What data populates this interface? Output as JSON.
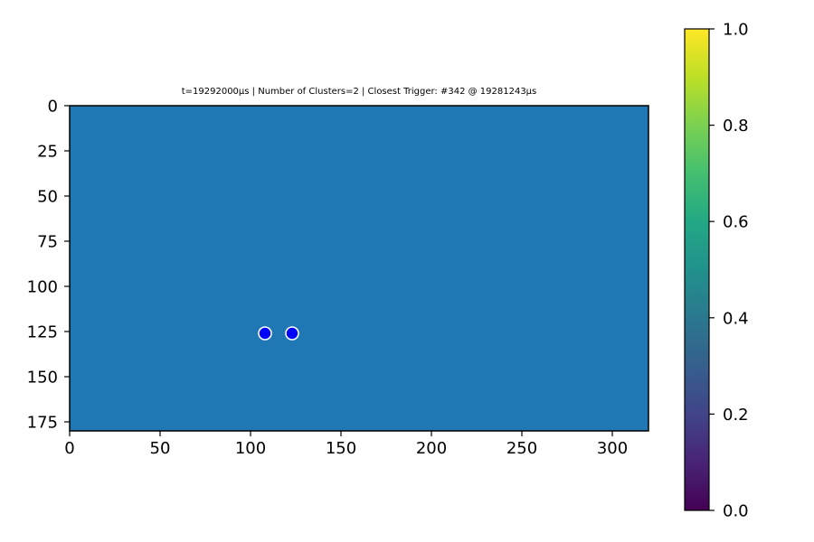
{
  "chart_data": {
    "type": "scatter",
    "title": "t=19292000µs | Number of Clusters=2 | Closest Trigger: #342 @ 19281243µs",
    "xlabel": "",
    "ylabel": "",
    "xlim": [
      0,
      320
    ],
    "ylim": [
      180,
      0
    ],
    "y_axis_inverted": true,
    "x_ticks": [
      "0",
      "50",
      "100",
      "150",
      "200",
      "250",
      "300"
    ],
    "y_ticks": [
      "0",
      "25",
      "50",
      "75",
      "100",
      "125",
      "150",
      "175"
    ],
    "grid": false,
    "background_image": {
      "type": "heatmap",
      "width": 320,
      "height": 180,
      "uniform_color": "#1f77b4"
    },
    "points": [
      {
        "x": 108,
        "y": 126
      },
      {
        "x": 123,
        "y": 126
      }
    ],
    "point_color": "#0000ff",
    "point_edge_color": "#ffffff",
    "colorbar": {
      "colormap": "viridis",
      "min": 0.0,
      "max": 1.0,
      "ticks": [
        "0.0",
        "0.2",
        "0.4",
        "0.6",
        "0.8",
        "1.0"
      ]
    }
  }
}
